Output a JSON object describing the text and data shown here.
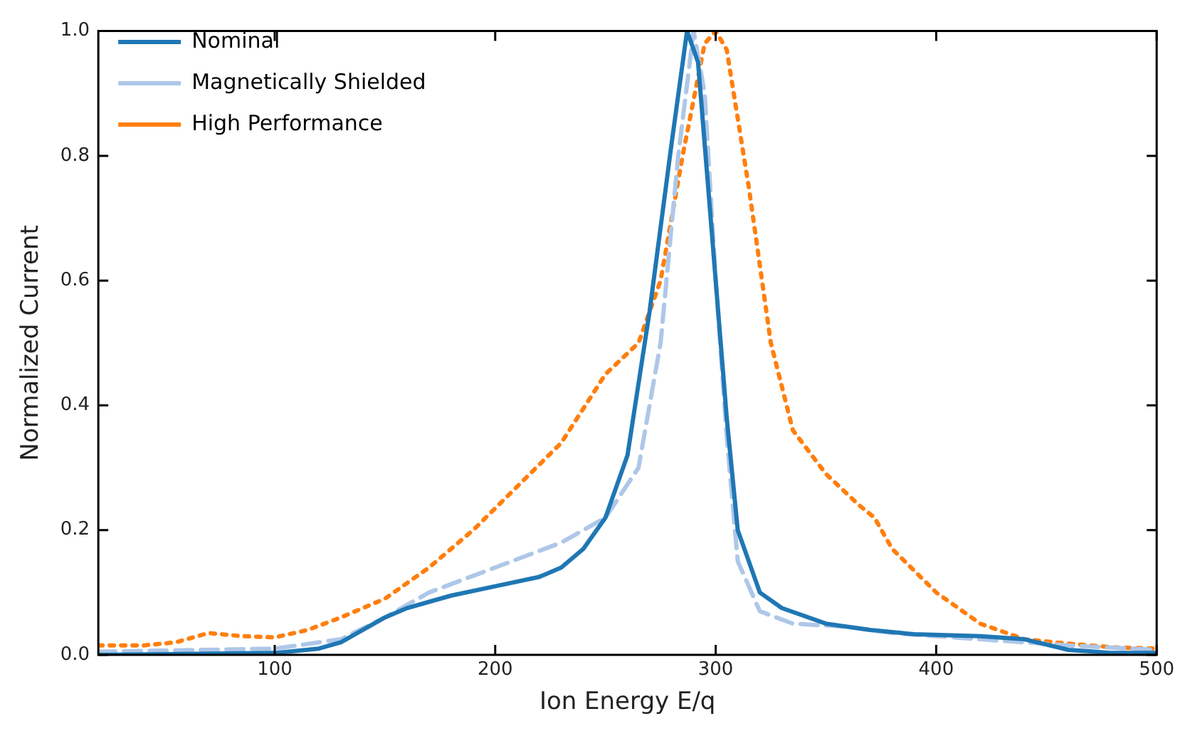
{
  "chart_data": {
    "type": "line",
    "xlabel": "Ion Energy E/q",
    "ylabel": "Normalized Current",
    "xlim": [
      20,
      500
    ],
    "ylim": [
      0,
      1
    ],
    "xticks": [
      100,
      200,
      300,
      400,
      500
    ],
    "yticks": [
      {
        "value": 0,
        "label": "0.0"
      },
      {
        "value": 0.2,
        "label": "0.2"
      },
      {
        "value": 0.4,
        "label": "0.4"
      },
      {
        "value": 0.6,
        "label": "0.6"
      },
      {
        "value": 0.8,
        "label": "0.8"
      },
      {
        "value": 1,
        "label": "1.0"
      }
    ],
    "grid": false,
    "legend": "top left",
    "marker": "none",
    "series": [
      {
        "name": "Nominal",
        "color": "#1f77b4",
        "line_style": "solid",
        "x": [
          20,
          100,
          120,
          130,
          140,
          150,
          160,
          170,
          180,
          200,
          220,
          230,
          240,
          250,
          260,
          270,
          280,
          287,
          292,
          300,
          305,
          310,
          320,
          330,
          350,
          370,
          390,
          420,
          440,
          460,
          480,
          500
        ],
        "values": [
          0,
          0.003,
          0.01,
          0.02,
          0.04,
          0.06,
          0.075,
          0.085,
          0.095,
          0.11,
          0.125,
          0.14,
          0.17,
          0.22,
          0.32,
          0.55,
          0.82,
          1.0,
          0.95,
          0.6,
          0.38,
          0.2,
          0.1,
          0.075,
          0.05,
          0.04,
          0.033,
          0.03,
          0.025,
          0.008,
          0.003,
          0.003
        ]
      },
      {
        "name": "Magnetically Shielded",
        "color": "#aec7e8",
        "line_style": "dashed",
        "x": [
          20,
          100,
          130,
          150,
          170,
          200,
          230,
          250,
          265,
          275,
          283,
          290,
          295,
          300,
          305,
          310,
          320,
          335,
          360,
          380,
          420,
          460,
          500
        ],
        "values": [
          0.005,
          0.01,
          0.025,
          0.06,
          0.1,
          0.14,
          0.18,
          0.22,
          0.3,
          0.5,
          0.8,
          1.0,
          0.9,
          0.6,
          0.35,
          0.15,
          0.07,
          0.05,
          0.045,
          0.035,
          0.025,
          0.015,
          0.008
        ]
      },
      {
        "name": "High Performance",
        "color": "#ff7f0e",
        "line_style": "dotted",
        "x": [
          20,
          40,
          55,
          70,
          85,
          100,
          115,
          130,
          150,
          170,
          190,
          210,
          230,
          250,
          265,
          275,
          285,
          295,
          300,
          305,
          315,
          325,
          335,
          350,
          365,
          372,
          380,
          400,
          420,
          440,
          460,
          480,
          500
        ],
        "values": [
          0.015,
          0.015,
          0.02,
          0.035,
          0.03,
          0.028,
          0.04,
          0.06,
          0.09,
          0.14,
          0.2,
          0.27,
          0.34,
          0.45,
          0.5,
          0.6,
          0.8,
          0.98,
          1.0,
          0.97,
          0.75,
          0.5,
          0.36,
          0.29,
          0.24,
          0.22,
          0.17,
          0.1,
          0.05,
          0.025,
          0.018,
          0.012,
          0.01
        ]
      }
    ]
  }
}
